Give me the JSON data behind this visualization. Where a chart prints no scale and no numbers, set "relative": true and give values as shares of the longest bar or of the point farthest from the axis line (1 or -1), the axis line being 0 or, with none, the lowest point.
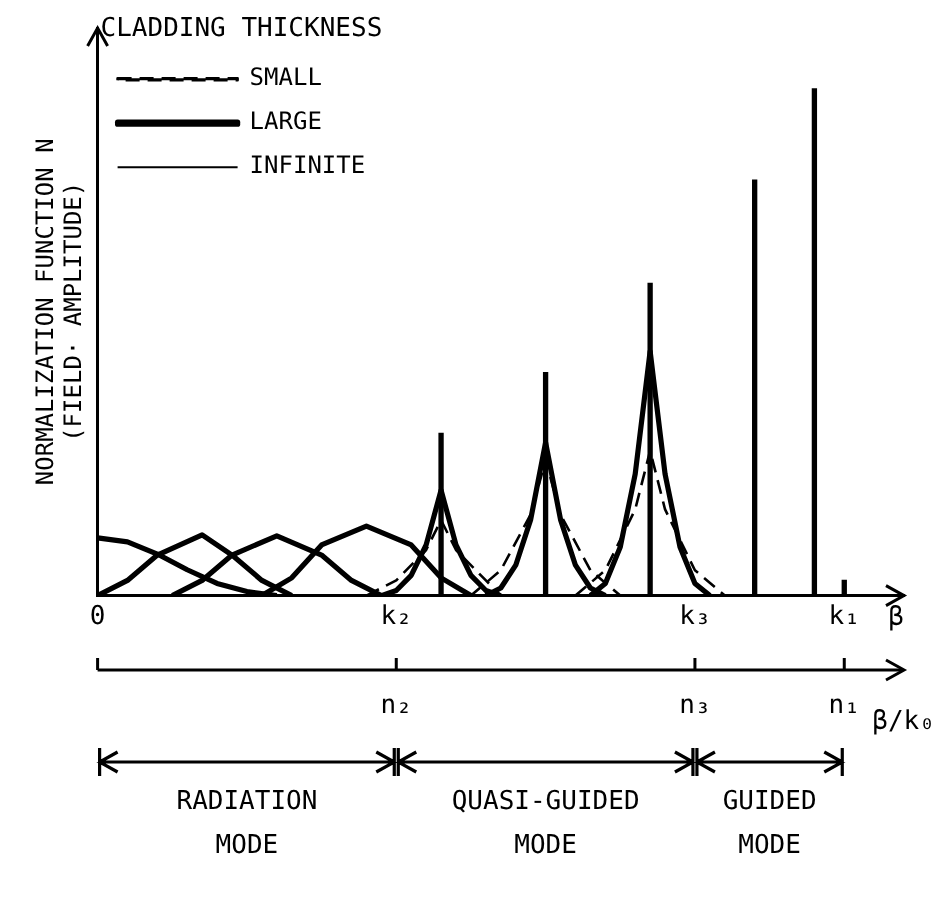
{
  "chart_data": {
    "type": "line",
    "relative": true,
    "ylabel": "NORMALIZATION FUNCTION N\n(FIELD· AMPLITUDE)",
    "xlabel": "β",
    "legend_title": "CLADDING THICKNESS",
    "legend": "top left",
    "grid": false,
    "marker": "none",
    "categories": [
      "0",
      null,
      null,
      null,
      null,
      null,
      null,
      null,
      null,
      null,
      null,
      null,
      null,
      null,
      null,
      null,
      null,
      null,
      null,
      null,
      "k₂",
      null,
      null,
      null,
      null,
      null,
      null,
      null,
      null,
      null,
      null,
      null,
      null,
      null,
      null,
      null,
      null,
      null,
      null,
      null,
      "k₃",
      null,
      null,
      null,
      null,
      null,
      null,
      null,
      null,
      null,
      "k₁",
      null,
      null,
      null,
      null
    ],
    "annotations": [
      {
        "text": "n₂",
        "x": "k₂"
      },
      {
        "text": "n₃",
        "x": "k₃"
      },
      {
        "text": "n₁",
        "x": "k₁"
      },
      "β/k₀",
      "RADIATION\nMODE",
      "QUASI-GUIDED\nMODE",
      "GUIDED\nMODE"
    ],
    "series": [
      {
        "name": "SMALL",
        "color": "#000000",
        "line_style": "dashed",
        "values": [
          null,
          null,
          null,
          null,
          null,
          null,
          null,
          null,
          null,
          null,
          null,
          null,
          null,
          null,
          null,
          null,
          null,
          null,
          0,
          null,
          0.03,
          null,
          0.09,
          0.149,
          0.09,
          null,
          0.03,
          0,
          null,
          null,
          null,
          null,
          null,
          null,
          null,
          null,
          null,
          null,
          null,
          null,
          null,
          null,
          null,
          null,
          null,
          null,
          null,
          null,
          null,
          null,
          null,
          null,
          null,
          null,
          null
        ]
      },
      {
        "color": "#000000",
        "line_style": "dashed",
        "values": [
          null,
          null,
          null,
          null,
          null,
          null,
          null,
          null,
          null,
          null,
          null,
          null,
          null,
          null,
          null,
          null,
          null,
          null,
          null,
          null,
          null,
          null,
          null,
          null,
          null,
          0,
          null,
          0.05,
          null,
          0.16,
          0.267,
          0.16,
          null,
          0.05,
          null,
          0,
          null,
          null,
          null,
          null,
          null,
          null,
          null,
          null,
          null,
          null,
          null,
          null,
          null,
          null,
          null,
          null,
          null,
          null,
          null
        ]
      },
      {
        "color": "#000000",
        "line_style": "dashed",
        "values": [
          null,
          null,
          null,
          null,
          null,
          null,
          null,
          null,
          null,
          null,
          null,
          null,
          null,
          null,
          null,
          null,
          null,
          null,
          null,
          null,
          null,
          null,
          null,
          null,
          null,
          null,
          null,
          null,
          null,
          null,
          null,
          null,
          0,
          null,
          0.05,
          null,
          0.17,
          0.286,
          0.17,
          null,
          0.05,
          null,
          0,
          null,
          null,
          null,
          null,
          null,
          null,
          null,
          null,
          null,
          null,
          null,
          null
        ]
      },
      {
        "name": "LARGE",
        "color": "#000000",
        "line_style": "solid",
        "values": [
          0.114,
          null,
          0.106,
          null,
          0.082,
          null,
          0.051,
          null,
          0.024,
          null,
          0.008,
          null,
          0,
          null,
          null,
          null,
          null,
          null,
          null,
          null,
          null,
          null,
          null,
          null,
          null,
          null,
          null,
          null,
          null,
          null,
          null,
          null,
          null,
          null,
          null,
          null,
          null,
          null,
          null,
          null,
          null,
          null,
          null,
          null,
          null,
          null,
          null,
          null,
          null,
          null,
          null,
          null,
          null,
          null,
          null
        ]
      },
      {
        "color": "#000000",
        "line_style": "solid",
        "values": [
          0,
          null,
          0.03,
          null,
          0.08,
          null,
          null,
          0.12,
          null,
          0.08,
          null,
          0.03,
          null,
          0,
          null,
          null,
          null,
          null,
          null,
          null,
          null,
          null,
          null,
          null,
          null,
          null,
          null,
          null,
          null,
          null,
          null,
          null,
          null,
          null,
          null,
          null,
          null,
          null,
          null,
          null,
          null,
          null,
          null,
          null,
          null,
          null,
          null,
          null,
          null,
          null,
          null,
          null,
          null,
          null,
          null
        ]
      },
      {
        "color": "#000000",
        "line_style": "solid",
        "values": [
          null,
          null,
          null,
          null,
          null,
          0,
          null,
          0.03,
          null,
          0.08,
          null,
          null,
          0.118,
          null,
          null,
          0.08,
          null,
          0.03,
          null,
          0,
          null,
          null,
          null,
          null,
          null,
          null,
          null,
          null,
          null,
          null,
          null,
          null,
          null,
          null,
          null,
          null,
          null,
          null,
          null,
          null,
          null,
          null,
          null,
          null,
          null,
          null,
          null,
          null,
          null,
          null,
          null,
          null,
          null,
          null,
          null
        ]
      },
      {
        "color": "#000000",
        "line_style": "solid",
        "values": [
          null,
          null,
          null,
          null,
          null,
          null,
          null,
          null,
          null,
          null,
          null,
          0,
          null,
          0.035,
          null,
          0.1,
          null,
          null,
          0.137,
          null,
          null,
          0.1,
          null,
          0.035,
          null,
          0,
          null,
          null,
          null,
          null,
          null,
          null,
          null,
          null,
          null,
          null,
          null,
          null,
          null,
          null,
          null,
          null,
          null,
          null,
          null,
          null,
          null,
          null,
          null,
          null,
          null,
          null,
          null,
          null,
          null
        ]
      },
      {
        "color": "#000000",
        "line_style": "solid",
        "values": [
          null,
          null,
          null,
          null,
          null,
          null,
          null,
          null,
          null,
          null,
          null,
          null,
          null,
          null,
          null,
          null,
          null,
          null,
          null,
          0,
          0.01,
          0.04,
          0.1,
          0.208,
          0.1,
          0.04,
          0.01,
          0,
          null,
          null,
          null,
          null,
          null,
          null,
          null,
          null,
          null,
          null,
          null,
          null,
          null,
          null,
          null,
          null,
          null,
          null,
          null,
          null,
          null,
          null,
          null,
          null,
          null,
          null,
          null
        ]
      },
      {
        "color": "#000000",
        "line_style": "solid",
        "values": [
          null,
          null,
          null,
          null,
          null,
          null,
          null,
          null,
          null,
          null,
          null,
          null,
          null,
          null,
          null,
          null,
          null,
          null,
          null,
          null,
          null,
          null,
          null,
          null,
          null,
          null,
          0,
          0.015,
          0.06,
          0.15,
          0.302,
          0.15,
          0.06,
          0.015,
          0,
          null,
          null,
          null,
          null,
          null,
          null,
          null,
          null,
          null,
          null,
          null,
          null,
          null,
          null,
          null,
          null,
          null,
          null,
          null,
          null
        ]
      },
      {
        "color": "#000000",
        "line_style": "solid",
        "values": [
          null,
          null,
          null,
          null,
          null,
          null,
          null,
          null,
          null,
          null,
          null,
          null,
          null,
          null,
          null,
          null,
          null,
          null,
          null,
          null,
          null,
          null,
          null,
          null,
          null,
          null,
          null,
          null,
          null,
          null,
          null,
          null,
          null,
          0,
          0.024,
          0.096,
          0.24,
          0.482,
          0.24,
          0.096,
          0.024,
          0,
          null,
          null,
          null,
          null,
          null,
          null,
          null,
          null,
          null,
          null,
          null,
          null,
          null
        ]
      },
      {
        "name": "INFINITE",
        "type": "bar",
        "color": "#000000",
        "values": [
          null,
          null,
          null,
          null,
          null,
          null,
          null,
          null,
          null,
          null,
          null,
          null,
          null,
          null,
          null,
          null,
          null,
          null,
          null,
          null,
          null,
          null,
          null,
          0.32,
          null,
          null,
          null,
          null,
          null,
          null,
          0.44,
          null,
          null,
          null,
          null,
          null,
          null,
          0.616,
          null,
          null,
          null,
          null,
          null,
          null,
          null,
          null,
          null,
          null,
          null,
          null,
          null,
          null,
          null,
          null,
          null
        ]
      },
      {
        "type": "bar",
        "color": "#000000",
        "values": [
          null,
          null,
          null,
          null,
          null,
          null,
          null,
          null,
          null,
          null,
          null,
          null,
          null,
          null,
          null,
          null,
          null,
          null,
          null,
          null,
          null,
          null,
          null,
          null,
          null,
          null,
          null,
          null,
          null,
          null,
          null,
          null,
          null,
          null,
          null,
          null,
          null,
          null,
          null,
          null,
          null,
          null,
          null,
          null,
          0.82,
          null,
          null,
          null,
          1.0,
          null,
          0.03,
          null,
          null,
          null,
          null
        ]
      }
    ]
  }
}
